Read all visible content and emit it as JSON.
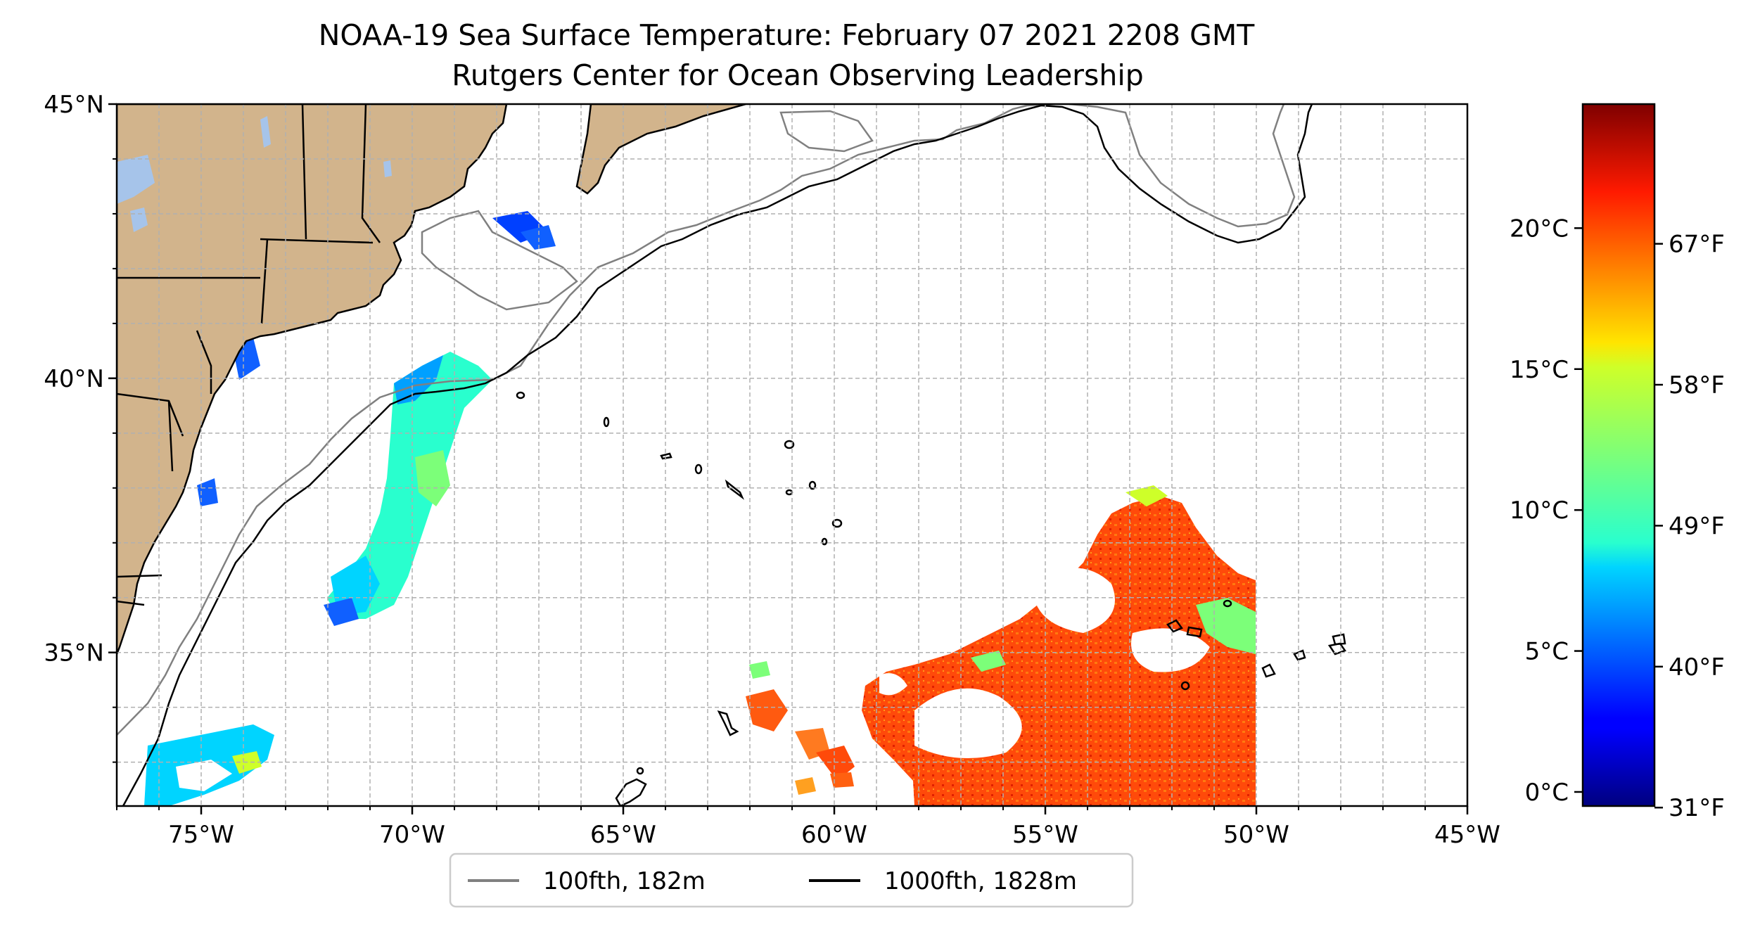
{
  "title": {
    "line1": "NOAA-19 Sea Surface Temperature: February 07 2021 2208 GMT",
    "line2": "Rutgers Center for Ocean Observing Leadership"
  },
  "map": {
    "lon_range": [
      -77,
      -45
    ],
    "lat_range": [
      32.2,
      45
    ],
    "gridlines": true,
    "land_color": "#d2b48c",
    "lake_color": "#a6c4ea",
    "lon_ticks": [
      {
        "value": -75,
        "label": "75°W"
      },
      {
        "value": -70,
        "label": "70°W"
      },
      {
        "value": -65,
        "label": "65°W"
      },
      {
        "value": -60,
        "label": "60°W"
      },
      {
        "value": -55,
        "label": "55°W"
      },
      {
        "value": -50,
        "label": "50°W"
      },
      {
        "value": -45,
        "label": "45°W"
      }
    ],
    "lat_ticks": [
      {
        "value": 45,
        "label": "45°N"
      },
      {
        "value": 40,
        "label": "40°N"
      },
      {
        "value": 35,
        "label": "35°N"
      }
    ]
  },
  "legend": {
    "items": [
      {
        "label": "100fth, 182m",
        "color": "#808080"
      },
      {
        "label": "1000fth, 1828m",
        "color": "#000000"
      }
    ]
  },
  "colorbar": {
    "colormap": "jet",
    "range_c": [
      -0.5,
      24.4
    ],
    "celsius_ticks": [
      {
        "value": 0,
        "label": "0°C"
      },
      {
        "value": 5,
        "label": "5°C"
      },
      {
        "value": 10,
        "label": "10°C"
      },
      {
        "value": 15,
        "label": "15°C"
      },
      {
        "value": 20,
        "label": "20°C"
      }
    ],
    "fahrenheit_ticks": [
      {
        "value": 31,
        "label": "31°F"
      },
      {
        "value": 40,
        "label": "40°F"
      },
      {
        "value": 49,
        "label": "49°F"
      },
      {
        "value": 58,
        "label": "58°F"
      },
      {
        "value": 67,
        "label": "67°F"
      }
    ]
  }
}
